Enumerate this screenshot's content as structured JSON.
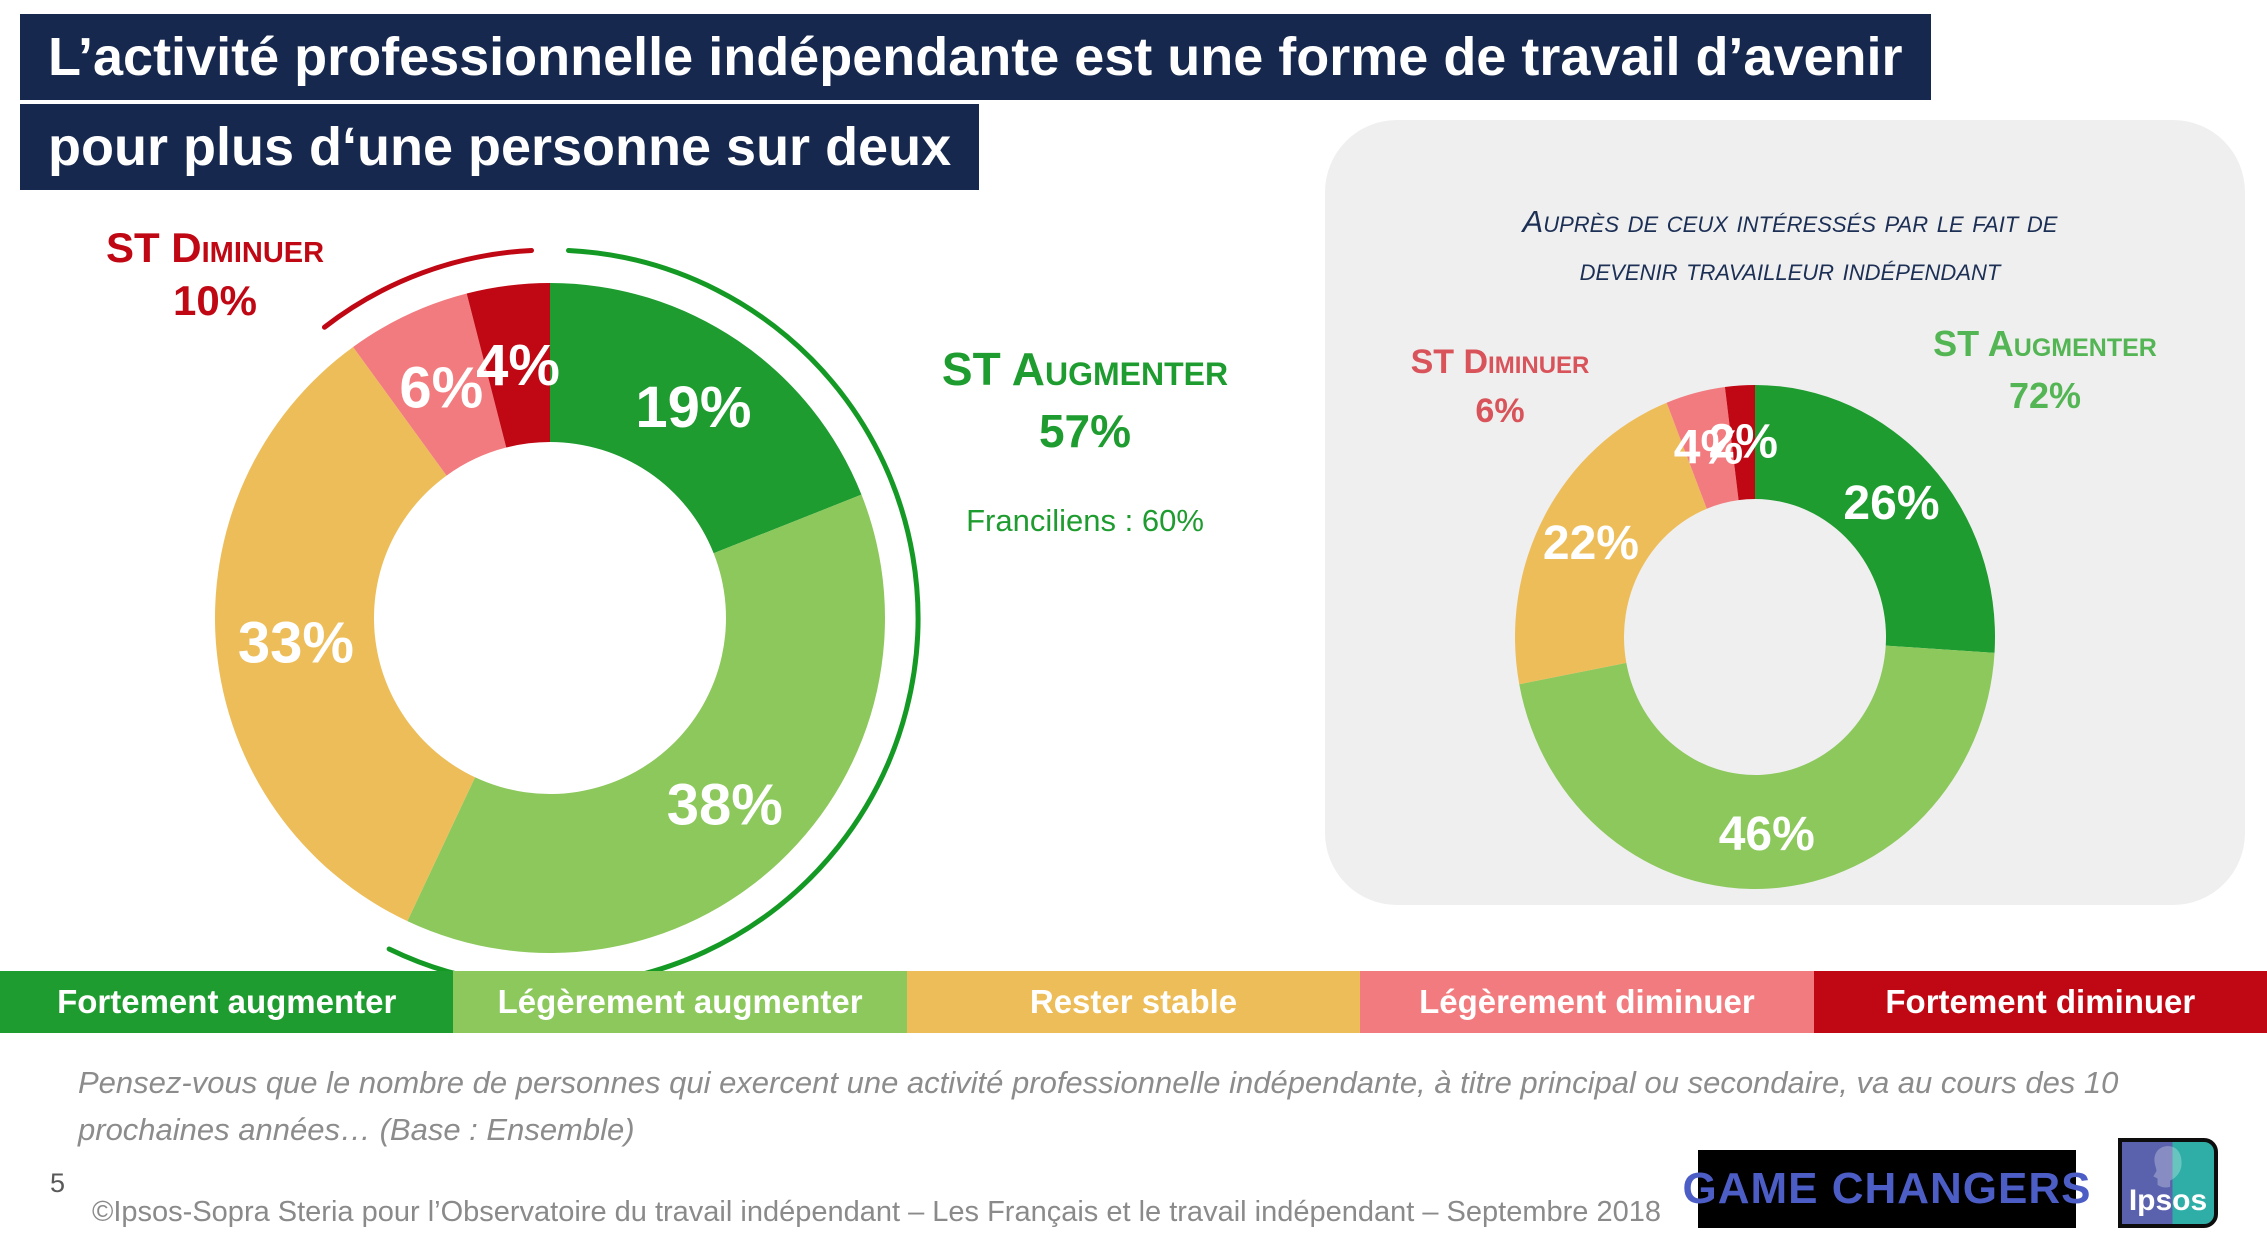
{
  "title": {
    "line1": "L’activité professionnelle indépendante est une forme de travail d’avenir",
    "line2": "pour plus d‘une personne sur deux"
  },
  "left_chart": {
    "st_diminuer_label": "ST Diminuer",
    "st_diminuer_value": "10%",
    "st_augmenter_label": "ST Augmenter",
    "st_augmenter_value": "57%",
    "subnote": "Franciliens : 60%"
  },
  "right_panel": {
    "note_line1": "Auprès de ceux intéressés par le fait de",
    "note_line2": "devenir travailleur indépendant",
    "st_diminuer_label": "ST Diminuer",
    "st_diminuer_value": "6%",
    "st_augmenter_label": "ST Augmenter",
    "st_augmenter_value": "72%"
  },
  "legend": {
    "items": [
      {
        "label": "Fortement augmenter",
        "color": "#1E9C2F"
      },
      {
        "label": "Légèrement augmenter",
        "color": "#8CC85C"
      },
      {
        "label": "Rester stable",
        "color": "#EDBD59"
      },
      {
        "label": "Légèrement diminuer",
        "color": "#F27B7F"
      },
      {
        "label": "Fortement diminuer",
        "color": "#C00814"
      }
    ]
  },
  "question": "Pensez-vous que le nombre de personnes qui exercent une activité professionnelle indépendante, à titre principal ou secondaire, va au cours des 10 prochaines années… (Base : Ensemble)",
  "footer": {
    "page_number": "5",
    "copyright": "©Ipsos-Sopra Steria pour l’Observatoire du travail indépendant – Les Français et le travail indépendant – Septembre 2018"
  },
  "logos": {
    "game_changers": "GAME CHANGERS",
    "ipsos": "Ipsos"
  },
  "colors": {
    "navy": "#16284E",
    "dark_green": "#1E9C2F",
    "light_green": "#8CC85C",
    "orange": "#EDBD59",
    "salmon": "#F27B7F",
    "dark_red": "#C00814",
    "panel_gray": "#EFEFEF"
  },
  "chart_data": [
    {
      "type": "pie",
      "name": "donut-ensemble",
      "categories": [
        "Fortement augmenter",
        "Légèrement augmenter",
        "Rester stable",
        "Légèrement diminuer",
        "Fortement diminuer"
      ],
      "values": [
        19,
        38,
        33,
        6,
        4
      ],
      "colors": [
        "#1E9C2F",
        "#8CC85C",
        "#EDBD59",
        "#F27B7F",
        "#C00814"
      ],
      "unit": "%",
      "donut": true,
      "start": "top-clockwise",
      "summary": {
        "st_augmenter": "57%",
        "st_diminuer": "10%",
        "franciliens": "60%"
      },
      "outer_arcs": [
        {
          "name": "augmenter-arc",
          "color": "#149A24",
          "from_pct": 0.8,
          "to_pct": 57.2
        },
        {
          "name": "diminuer-arc",
          "color": "#C00814",
          "from_pct": 89.5,
          "to_pct": 99.2
        }
      ]
    },
    {
      "type": "pie",
      "name": "donut-interesses",
      "base_note": "Auprès de ceux intéressés par le fait de devenir travailleur indépendant",
      "categories": [
        "Fortement augmenter",
        "Légèrement augmenter",
        "Rester stable",
        "Légèrement diminuer",
        "Fortement diminuer"
      ],
      "values": [
        26,
        46,
        22,
        4,
        2
      ],
      "colors": [
        "#1E9C2F",
        "#8CC85C",
        "#EDBD59",
        "#F27B7F",
        "#C00814"
      ],
      "unit": "%",
      "donut": true,
      "start": "top-clockwise",
      "summary": {
        "st_augmenter": "72%",
        "st_diminuer": "6%"
      }
    }
  ]
}
